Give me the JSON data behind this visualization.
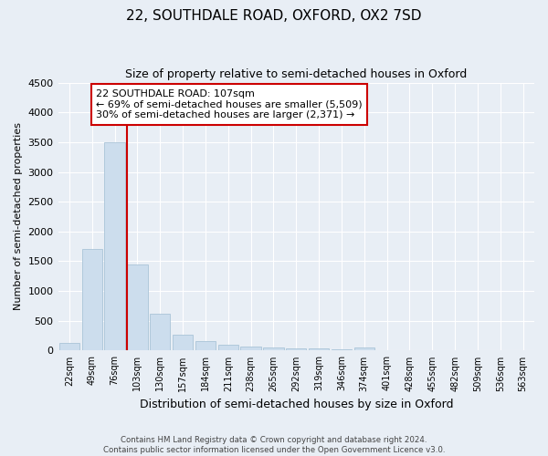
{
  "title": "22, SOUTHDALE ROAD, OXFORD, OX2 7SD",
  "subtitle": "Size of property relative to semi-detached houses in Oxford",
  "xlabel": "Distribution of semi-detached houses by size in Oxford",
  "ylabel": "Number of semi-detached properties",
  "categories": [
    "22sqm",
    "49sqm",
    "76sqm",
    "103sqm",
    "130sqm",
    "157sqm",
    "184sqm",
    "211sqm",
    "238sqm",
    "265sqm",
    "292sqm",
    "319sqm",
    "346sqm",
    "374sqm",
    "401sqm",
    "428sqm",
    "455sqm",
    "482sqm",
    "509sqm",
    "536sqm",
    "563sqm"
  ],
  "values": [
    130,
    1700,
    3500,
    1450,
    620,
    270,
    160,
    100,
    65,
    50,
    40,
    30,
    20,
    55,
    5,
    5,
    5,
    3,
    3,
    2,
    2
  ],
  "bar_color": "#ccdded",
  "bar_edge_color": "#aac4d8",
  "vline_index": 3,
  "vline_color": "#cc0000",
  "annotation_text": "22 SOUTHDALE ROAD: 107sqm\n← 69% of semi-detached houses are smaller (5,509)\n30% of semi-detached houses are larger (2,371) →",
  "annotation_box_color": "#ffffff",
  "annotation_box_edge": "#cc0000",
  "ylim": [
    0,
    4500
  ],
  "yticks": [
    0,
    500,
    1000,
    1500,
    2000,
    2500,
    3000,
    3500,
    4000,
    4500
  ],
  "footnote": "Contains HM Land Registry data © Crown copyright and database right 2024.\nContains public sector information licensed under the Open Government Licence v3.0.",
  "bg_color": "#e8eef5",
  "plot_bg_color": "#e8eef5",
  "grid_color": "#ffffff",
  "title_fontsize": 11,
  "subtitle_fontsize": 9
}
